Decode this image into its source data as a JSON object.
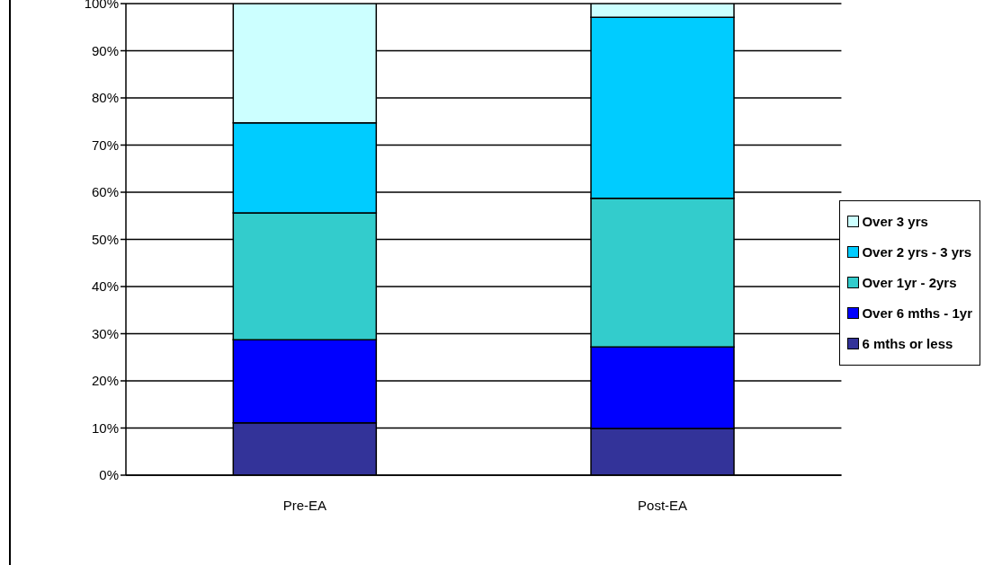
{
  "chart_data": {
    "type": "bar",
    "stacked": true,
    "categories": [
      "Pre-EA",
      "Post-EA"
    ],
    "series": [
      {
        "name": "6 mths or less",
        "color": "#333399",
        "values": [
          11.1,
          9.9
        ]
      },
      {
        "name": "Over 6 mths - 1yr",
        "color": "#0000ff",
        "values": [
          17.6,
          17.3
        ]
      },
      {
        "name": "Over 1yr - 2yrs",
        "color": "#33cccc",
        "values": [
          26.9,
          31.5
        ]
      },
      {
        "name": "Over 2 yrs - 3 yrs",
        "color": "#00ccff",
        "values": [
          19.1,
          38.4
        ]
      },
      {
        "name": "Over 3 yrs",
        "color": "#ccffff",
        "values": [
          25.3,
          2.9
        ]
      }
    ],
    "ylim": [
      0,
      100
    ],
    "yticks": [
      {
        "value": 0,
        "label": "0%"
      },
      {
        "value": 10,
        "label": "10%"
      },
      {
        "value": 20,
        "label": "20%"
      },
      {
        "value": 30,
        "label": "30%"
      },
      {
        "value": 40,
        "label": "40%"
      },
      {
        "value": 50,
        "label": "50%"
      },
      {
        "value": 60,
        "label": "60%"
      },
      {
        "value": 70,
        "label": "70%"
      },
      {
        "value": 80,
        "label": "80%"
      },
      {
        "value": 90,
        "label": "90%"
      },
      {
        "value": 100,
        "label": "100%"
      }
    ],
    "grid": "y",
    "legend": "right"
  }
}
